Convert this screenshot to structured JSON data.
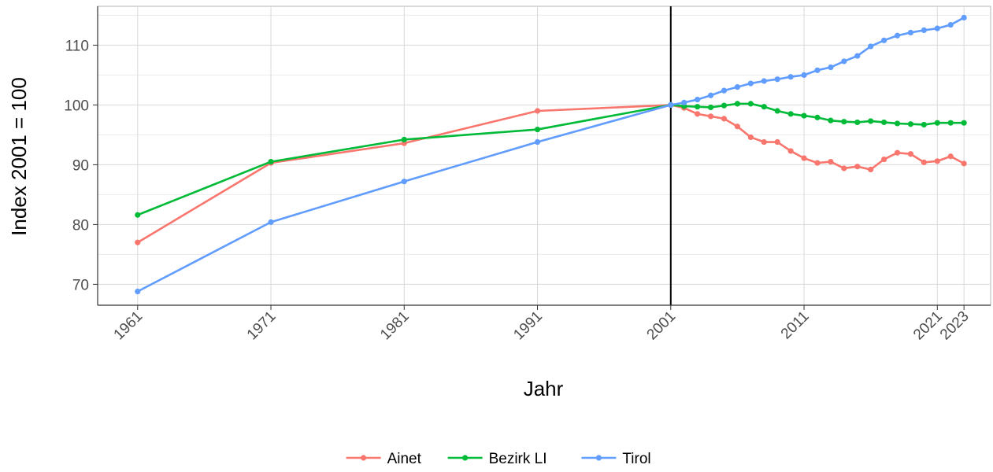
{
  "chart_data": {
    "type": "line",
    "xlabel": "Jahr",
    "ylabel": "Index 2001 = 100",
    "xlim": [
      1958,
      2025
    ],
    "ylim": [
      66.5,
      116.5
    ],
    "x_ticks": [
      1961,
      1971,
      1981,
      1991,
      2001,
      2011,
      2021,
      2023
    ],
    "y_ticks": [
      70,
      80,
      90,
      100,
      110
    ],
    "reference_line_x": 2001,
    "grid": true,
    "legend_position": "bottom",
    "series": [
      {
        "name": "Ainet",
        "color": "#F8766D",
        "x": [
          1961,
          1971,
          1981,
          1991,
          2001,
          2002,
          2003,
          2004,
          2005,
          2006,
          2007,
          2008,
          2009,
          2010,
          2011,
          2012,
          2013,
          2014,
          2015,
          2016,
          2017,
          2018,
          2019,
          2020,
          2021,
          2022,
          2023
        ],
        "y": [
          77.0,
          90.3,
          93.6,
          99.0,
          100.0,
          99.5,
          98.5,
          98.1,
          97.7,
          96.4,
          94.6,
          93.8,
          93.8,
          92.3,
          91.1,
          90.3,
          90.5,
          89.4,
          89.7,
          89.2,
          90.9,
          92.0,
          91.8,
          90.4,
          90.6,
          91.4,
          90.2
        ]
      },
      {
        "name": "Bezirk LI",
        "color": "#00BA38",
        "x": [
          1961,
          1971,
          1981,
          1991,
          2001,
          2002,
          2003,
          2004,
          2005,
          2006,
          2007,
          2008,
          2009,
          2010,
          2011,
          2012,
          2013,
          2014,
          2015,
          2016,
          2017,
          2018,
          2019,
          2020,
          2021,
          2022,
          2023
        ],
        "y": [
          81.6,
          90.5,
          94.2,
          95.9,
          100.0,
          99.8,
          99.7,
          99.6,
          99.9,
          100.2,
          100.2,
          99.7,
          99.0,
          98.5,
          98.2,
          97.9,
          97.4,
          97.2,
          97.1,
          97.3,
          97.1,
          96.9,
          96.8,
          96.7,
          97.0,
          97.0,
          97.0
        ]
      },
      {
        "name": "Tirol",
        "color": "#619CFF",
        "x": [
          1961,
          1971,
          1981,
          1991,
          2001,
          2002,
          2003,
          2004,
          2005,
          2006,
          2007,
          2008,
          2009,
          2010,
          2011,
          2012,
          2013,
          2014,
          2015,
          2016,
          2017,
          2018,
          2019,
          2020,
          2021,
          2022,
          2023
        ],
        "y": [
          68.8,
          80.4,
          87.2,
          93.8,
          100.0,
          100.4,
          100.9,
          101.6,
          102.4,
          103.0,
          103.6,
          104.0,
          104.3,
          104.7,
          105.0,
          105.8,
          106.3,
          107.3,
          108.2,
          109.8,
          110.8,
          111.6,
          112.1,
          112.5,
          112.8,
          113.4,
          114.6
        ]
      }
    ]
  }
}
